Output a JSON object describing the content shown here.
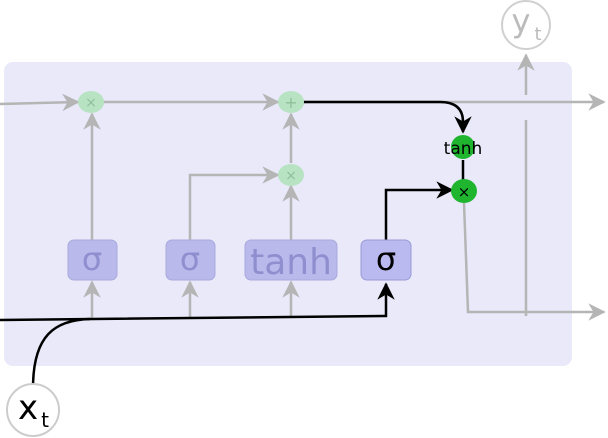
{
  "diagram": {
    "output_label": {
      "main": "y",
      "sub": "t"
    },
    "input_label": {
      "main": "x",
      "sub": "t"
    },
    "gates": [
      {
        "id": "forget",
        "label": "σ",
        "active": false
      },
      {
        "id": "input",
        "label": "σ",
        "active": false
      },
      {
        "id": "candidate",
        "label": "tanh",
        "active": false
      },
      {
        "id": "output",
        "label": "σ",
        "active": true
      }
    ],
    "ops": {
      "forget_multiply": "×",
      "input_multiply": "×",
      "cell_add": "+",
      "cell_tanh": "tanh",
      "output_multiply": "×"
    },
    "colors": {
      "cell_background": "#e9e9fa",
      "gate_inactive_fill": "#b9b9ec",
      "gate_inactive_text": "#8f8fd0",
      "gate_active_fill": "#babaf0",
      "op_inactive_fill": "#b7e3c2",
      "op_active_fill": "#1fb52f",
      "line_inactive": "#b5b5b5",
      "line_active": "#000000"
    }
  }
}
